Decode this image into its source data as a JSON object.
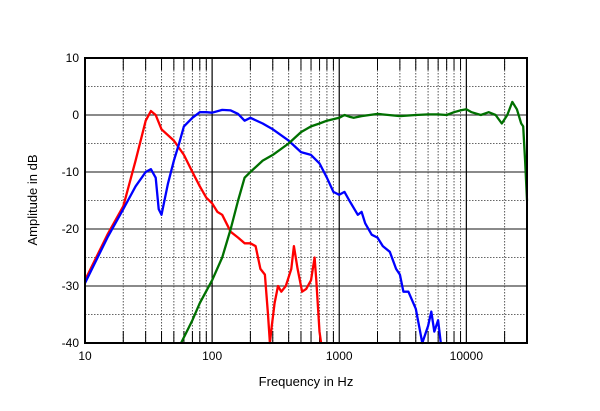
{
  "chart_data": {
    "type": "line",
    "title": "",
    "xlabel": "Frequency in Hz",
    "ylabel": "Amplitude in dB",
    "xscale": "log",
    "xlim": [
      10,
      30000
    ],
    "ylim": [
      -40,
      10
    ],
    "grid": true,
    "x_ticks": [
      "10",
      "100",
      "1000",
      "10000"
    ],
    "x_tick_values": [
      10,
      100,
      1000,
      10000
    ],
    "y_ticks": [
      "10",
      "0",
      "-10",
      "-20",
      "-30",
      "-40"
    ],
    "y_tick_values": [
      10,
      0,
      -10,
      -20,
      -30,
      -40
    ],
    "series": [
      {
        "name": "red",
        "color": "#ff0000",
        "points": [
          [
            10,
            -29
          ],
          [
            15,
            -21
          ],
          [
            20,
            -16
          ],
          [
            25,
            -8
          ],
          [
            30,
            -1
          ],
          [
            33,
            0.7
          ],
          [
            36,
            0
          ],
          [
            40,
            -2.5
          ],
          [
            50,
            -4.5
          ],
          [
            60,
            -7
          ],
          [
            70,
            -10
          ],
          [
            80,
            -12.5
          ],
          [
            90,
            -14.5
          ],
          [
            100,
            -15.5
          ],
          [
            110,
            -17
          ],
          [
            120,
            -17.5
          ],
          [
            140,
            -20.5
          ],
          [
            160,
            -21.5
          ],
          [
            180,
            -22.5
          ],
          [
            200,
            -22.5
          ],
          [
            220,
            -23
          ],
          [
            240,
            -27
          ],
          [
            260,
            -28
          ],
          [
            275,
            -35
          ],
          [
            285,
            -40
          ],
          [
            295,
            -37
          ],
          [
            310,
            -33
          ],
          [
            330,
            -30
          ],
          [
            350,
            -31
          ],
          [
            380,
            -30
          ],
          [
            420,
            -27
          ],
          [
            440,
            -23
          ],
          [
            470,
            -27
          ],
          [
            510,
            -31
          ],
          [
            550,
            -30.5
          ],
          [
            600,
            -29
          ],
          [
            640,
            -25
          ],
          [
            660,
            -29
          ],
          [
            700,
            -38
          ],
          [
            720,
            -40
          ]
        ]
      },
      {
        "name": "blue",
        "color": "#0000ff",
        "points": [
          [
            10,
            -29.5
          ],
          [
            15,
            -21.5
          ],
          [
            20,
            -16.5
          ],
          [
            25,
            -12.5
          ],
          [
            30,
            -10
          ],
          [
            33,
            -9.5
          ],
          [
            36,
            -11
          ],
          [
            38,
            -16.5
          ],
          [
            40,
            -17.5
          ],
          [
            45,
            -12
          ],
          [
            50,
            -8
          ],
          [
            55,
            -5
          ],
          [
            60,
            -2
          ],
          [
            70,
            -0.5
          ],
          [
            80,
            0.5
          ],
          [
            90,
            0.5
          ],
          [
            100,
            0.4
          ],
          [
            120,
            0.9
          ],
          [
            140,
            0.8
          ],
          [
            160,
            0.2
          ],
          [
            180,
            -1
          ],
          [
            200,
            -0.5
          ],
          [
            250,
            -1.5
          ],
          [
            300,
            -2.5
          ],
          [
            400,
            -4.5
          ],
          [
            500,
            -6.5
          ],
          [
            600,
            -7
          ],
          [
            700,
            -8.5
          ],
          [
            800,
            -11
          ],
          [
            900,
            -13.5
          ],
          [
            1000,
            -14
          ],
          [
            1100,
            -13.5
          ],
          [
            1200,
            -15
          ],
          [
            1400,
            -17.5
          ],
          [
            1500,
            -17
          ],
          [
            1600,
            -19
          ],
          [
            1800,
            -21
          ],
          [
            2000,
            -21.5
          ],
          [
            2200,
            -23
          ],
          [
            2500,
            -24
          ],
          [
            2800,
            -27
          ],
          [
            3000,
            -28
          ],
          [
            3200,
            -31
          ],
          [
            3500,
            -31
          ],
          [
            4000,
            -34
          ],
          [
            4500,
            -40
          ],
          [
            5000,
            -37
          ],
          [
            5300,
            -34.5
          ],
          [
            5600,
            -38
          ],
          [
            6000,
            -36
          ],
          [
            6300,
            -40
          ]
        ]
      },
      {
        "name": "green",
        "color": "#007000",
        "points": [
          [
            57,
            -40
          ],
          [
            70,
            -36
          ],
          [
            80,
            -33
          ],
          [
            100,
            -29
          ],
          [
            120,
            -25
          ],
          [
            140,
            -20
          ],
          [
            160,
            -15
          ],
          [
            180,
            -11
          ],
          [
            200,
            -10
          ],
          [
            250,
            -8
          ],
          [
            300,
            -7
          ],
          [
            400,
            -5
          ],
          [
            500,
            -3
          ],
          [
            600,
            -2
          ],
          [
            700,
            -1.5
          ],
          [
            800,
            -1
          ],
          [
            1000,
            -0.5
          ],
          [
            1100,
            0
          ],
          [
            1200,
            -0.3
          ],
          [
            1300,
            -0.5
          ],
          [
            1500,
            -0.2
          ],
          [
            2000,
            0.2
          ],
          [
            3000,
            -0.2
          ],
          [
            4000,
            0
          ],
          [
            5000,
            0.1
          ],
          [
            6000,
            0.1
          ],
          [
            7000,
            0
          ],
          [
            8000,
            0.5
          ],
          [
            9000,
            0.8
          ],
          [
            10000,
            1
          ],
          [
            11000,
            0.5
          ],
          [
            13000,
            0
          ],
          [
            15000,
            0.5
          ],
          [
            17000,
            0
          ],
          [
            19000,
            -1.5
          ],
          [
            21000,
            0
          ],
          [
            23000,
            2.3
          ],
          [
            25000,
            1
          ],
          [
            27000,
            -1.5
          ],
          [
            28000,
            -2
          ],
          [
            29000,
            -8
          ],
          [
            30000,
            -15
          ]
        ]
      }
    ]
  }
}
